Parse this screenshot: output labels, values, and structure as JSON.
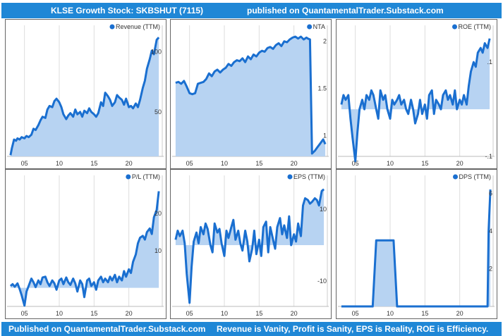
{
  "header": {
    "title": "KLSE Growth Stock: SKBSHUT (7115)",
    "published": "published on QuantamentalTrader.Substack.com"
  },
  "footer": {
    "published": "Published on QuantamentalTrader.Substack.com",
    "tagline": "Revenue is Vanity, Profit is Sanity, EPS is Reality, ROE is Efficiency."
  },
  "colors": {
    "banner": "#1f87d6",
    "line": "#1a6fd0",
    "fill": "#b7d3f2",
    "grid": "#dddddd"
  },
  "chart_data": [
    {
      "id": "revenue",
      "type": "area",
      "legend": "Revenue (TTM)",
      "xticks": [
        5,
        10,
        15,
        20
      ],
      "xtick_labels": [
        "05",
        "10",
        "15",
        "20"
      ],
      "xlim": [
        2.5,
        25
      ],
      "yticks": [
        50,
        100
      ],
      "ytick_labels": [
        "50",
        "100"
      ],
      "ylim": [
        13,
        115
      ],
      "baseline": 13,
      "x": [
        3,
        3.2,
        3.5,
        3.8,
        4,
        4.3,
        4.6,
        5,
        5.3,
        5.6,
        6,
        6.3,
        6.6,
        7,
        7.3,
        7.6,
        8,
        8.3,
        8.6,
        9,
        9.3,
        9.6,
        10,
        10.3,
        10.6,
        11,
        11.3,
        11.6,
        12,
        12.3,
        12.6,
        13,
        13.3,
        13.6,
        14,
        14.3,
        14.6,
        15,
        15.3,
        15.6,
        16,
        16.3,
        16.6,
        17,
        17.3,
        17.6,
        18,
        18.3,
        18.6,
        19,
        19.3,
        19.6,
        20,
        20.3,
        20.6,
        21,
        21.3,
        21.6,
        22,
        22.3,
        22.6,
        23,
        23.3,
        23.6,
        24,
        24.3
      ],
      "values": [
        14,
        20,
        27,
        26,
        28,
        27,
        29,
        28,
        30,
        29,
        31,
        36,
        35,
        39,
        43,
        46,
        45,
        52,
        55,
        54,
        59,
        61,
        58,
        54,
        48,
        44,
        47,
        49,
        46,
        52,
        48,
        50,
        46,
        51,
        49,
        53,
        50,
        48,
        46,
        49,
        58,
        55,
        66,
        63,
        60,
        55,
        58,
        64,
        62,
        60,
        56,
        61,
        54,
        55,
        53,
        57,
        54,
        60,
        70,
        76,
        86,
        94,
        101,
        98,
        110,
        112
      ]
    },
    {
      "id": "nta",
      "type": "area",
      "legend": "NTA",
      "xticks": [
        5,
        10,
        15,
        20
      ],
      "xtick_labels": [
        "05",
        "10",
        "15",
        "20"
      ],
      "xlim": [
        2.5,
        25
      ],
      "yticks": [
        1,
        1.5,
        2
      ],
      "ytick_labels": [
        "1",
        "1.5",
        "2"
      ],
      "ylim": [
        0.78,
        2.08
      ],
      "baseline": 0.78,
      "x": [
        3,
        3.4,
        3.8,
        4.2,
        4.6,
        5,
        5.4,
        5.8,
        6.2,
        6.6,
        7,
        7.4,
        7.8,
        8.2,
        8.6,
        9,
        9.4,
        9.8,
        10.2,
        10.6,
        11,
        11.4,
        11.8,
        12.2,
        12.6,
        13,
        13.4,
        13.8,
        14.2,
        14.6,
        15,
        15.4,
        15.8,
        16.2,
        16.6,
        17,
        17.4,
        17.8,
        18.2,
        18.6,
        19,
        19.4,
        19.8,
        20.2,
        20.6,
        21,
        21.4,
        21.8,
        22,
        22.3,
        22.6,
        23,
        23.4,
        23.8,
        24.2,
        24.5
      ],
      "values": [
        1.56,
        1.57,
        1.55,
        1.58,
        1.52,
        1.45,
        1.44,
        1.45,
        1.55,
        1.56,
        1.57,
        1.6,
        1.66,
        1.63,
        1.68,
        1.7,
        1.67,
        1.7,
        1.72,
        1.76,
        1.74,
        1.78,
        1.8,
        1.79,
        1.82,
        1.78,
        1.84,
        1.81,
        1.86,
        1.84,
        1.88,
        1.9,
        1.89,
        1.93,
        1.94,
        1.92,
        1.96,
        1.98,
        1.95,
        2.0,
        1.99,
        2.02,
        2.04,
        2.05,
        2.03,
        2.05,
        2.02,
        2.04,
        2.03,
        2.02,
        0.81,
        0.84,
        0.88,
        0.92,
        0.96,
        0.91
      ]
    },
    {
      "id": "roe",
      "type": "area",
      "legend": "ROE (TTM)",
      "xticks": [
        5,
        10,
        15,
        20
      ],
      "xtick_labels": [
        "05",
        "10",
        "15",
        "20"
      ],
      "xlim": [
        2.5,
        25
      ],
      "yticks": [
        -0.1,
        0.1
      ],
      "ytick_labels": [
        "-.1",
        ".1"
      ],
      "ylim": [
        -0.1,
        0.16
      ],
      "baseline": 0,
      "x": [
        3,
        3.3,
        3.6,
        4,
        4.3,
        4.6,
        5,
        5.3,
        5.6,
        6,
        6.3,
        6.6,
        7,
        7.3,
        7.6,
        8,
        8.3,
        8.6,
        9,
        9.3,
        9.6,
        10,
        10.3,
        10.6,
        11,
        11.3,
        11.6,
        12,
        12.3,
        12.6,
        13,
        13.3,
        13.6,
        14,
        14.3,
        14.6,
        15,
        15.3,
        15.6,
        16,
        16.3,
        16.6,
        17,
        17.3,
        17.6,
        18,
        18.3,
        18.6,
        19,
        19.3,
        19.6,
        20,
        20.3,
        20.6,
        21,
        21.3,
        21.6,
        22,
        22.3,
        22.6,
        23,
        23.3,
        23.6,
        24,
        24.3
      ],
      "values": [
        0.01,
        0.03,
        0.02,
        0.03,
        -0.02,
        -0.06,
        -0.11,
        -0.05,
        0.0,
        0.02,
        0.0,
        0.03,
        0.02,
        0.04,
        0.03,
        0.0,
        -0.02,
        0.04,
        0.02,
        0.03,
        0.0,
        -0.02,
        0.02,
        0.01,
        0.02,
        0.03,
        0.01,
        0.02,
        0.0,
        -0.01,
        0.02,
        0.0,
        -0.03,
        -0.01,
        0.02,
        -0.01,
        0.01,
        -0.02,
        0.03,
        0.04,
        -0.01,
        0.02,
        0.01,
        0.0,
        0.03,
        0.04,
        0.02,
        0.03,
        0.01,
        0.04,
        0.0,
        0.02,
        0.01,
        0.03,
        0.01,
        0.05,
        0.08,
        0.1,
        0.09,
        0.12,
        0.13,
        0.12,
        0.14,
        0.13,
        0.15
      ]
    },
    {
      "id": "pl",
      "type": "area",
      "legend": "P/L (TTM)",
      "xticks": [
        5,
        10,
        15,
        20
      ],
      "xtick_labels": [
        "05",
        "10",
        "15",
        "20"
      ],
      "xlim": [
        2.5,
        25
      ],
      "yticks": [
        10,
        20
      ],
      "ytick_labels": [
        "10",
        "20"
      ],
      "ylim": [
        -5,
        28
      ],
      "baseline": 0,
      "x": [
        3,
        3.3,
        3.6,
        4,
        4.3,
        4.6,
        5,
        5.3,
        5.6,
        6,
        6.3,
        6.6,
        7,
        7.3,
        7.6,
        8,
        8.3,
        8.6,
        9,
        9.3,
        9.6,
        10,
        10.3,
        10.6,
        11,
        11.3,
        11.6,
        12,
        12.3,
        12.6,
        13,
        13.3,
        13.6,
        14,
        14.3,
        14.6,
        15,
        15.3,
        15.6,
        16,
        16.3,
        16.6,
        17,
        17.3,
        17.6,
        18,
        18.3,
        18.6,
        19,
        19.3,
        19.6,
        20,
        20.3,
        20.6,
        21,
        21.3,
        21.6,
        22,
        22.3,
        22.6,
        23,
        23.3,
        23.6,
        24,
        24.3
      ],
      "values": [
        0.5,
        1.0,
        0.3,
        1.2,
        -0.3,
        -2.0,
        -4.8,
        -1.0,
        0.5,
        2.5,
        1.5,
        0.2,
        2.0,
        1.0,
        2.8,
        3.0,
        1.5,
        0.5,
        2.0,
        1.2,
        -0.5,
        2.0,
        2.5,
        1.0,
        2.8,
        1.5,
        0.8,
        2.5,
        1.2,
        -1.0,
        2.0,
        1.0,
        -2.5,
        2.0,
        2.5,
        0.5,
        1.5,
        -0.5,
        2.0,
        3.0,
        1.5,
        2.5,
        1.5,
        3.0,
        2.0,
        3.5,
        1.5,
        3.0,
        2.0,
        4.5,
        3.0,
        5.0,
        4.0,
        7.0,
        9.0,
        12.0,
        13.5,
        14.0,
        13.0,
        15.0,
        16.0,
        14.5,
        19.0,
        21.0,
        26.0
      ]
    },
    {
      "id": "eps",
      "type": "area",
      "legend": "EPS (TTM)",
      "xticks": [
        5,
        10,
        15,
        20
      ],
      "xtick_labels": [
        "05",
        "10",
        "15",
        "20"
      ],
      "xlim": [
        2.5,
        25
      ],
      "yticks": [
        -10,
        10
      ],
      "ytick_labels": [
        "-10",
        "10"
      ],
      "ylim": [
        -17,
        17
      ],
      "baseline": 0,
      "x": [
        3,
        3.3,
        3.6,
        4,
        4.3,
        4.6,
        5,
        5.3,
        5.6,
        6,
        6.3,
        6.6,
        7,
        7.3,
        7.6,
        8,
        8.3,
        8.6,
        9,
        9.3,
        9.6,
        10,
        10.3,
        10.6,
        11,
        11.3,
        11.6,
        12,
        12.3,
        12.6,
        13,
        13.3,
        13.6,
        14,
        14.3,
        14.6,
        15,
        15.3,
        15.6,
        16,
        16.3,
        16.6,
        17,
        17.3,
        17.6,
        18,
        18.3,
        18.6,
        19,
        19.3,
        19.6,
        20,
        20.3,
        20.6,
        21,
        21.3,
        21.6,
        22,
        22.3,
        22.6,
        23,
        23.3,
        23.6,
        24,
        24.3
      ],
      "values": [
        1.5,
        4.0,
        2.5,
        4.0,
        0.5,
        -8.0,
        -16.0,
        -6.0,
        1.0,
        3.5,
        0.5,
        5.0,
        3.0,
        6.0,
        4.5,
        0.0,
        -2.0,
        6.0,
        3.5,
        4.5,
        0.5,
        -3.0,
        4.0,
        2.0,
        5.0,
        7.0,
        1.5,
        4.0,
        0.5,
        -1.5,
        4.0,
        1.0,
        -4.5,
        -1.0,
        4.0,
        -2.5,
        1.5,
        -3.0,
        5.0,
        6.5,
        -2.0,
        5.0,
        1.5,
        -1.0,
        5.0,
        7.5,
        3.0,
        5.5,
        2.0,
        8.0,
        0.0,
        3.0,
        1.0,
        6.0,
        2.5,
        11.0,
        13.0,
        12.5,
        11.5,
        12.0,
        13.0,
        12.5,
        11.0,
        15.0,
        15.5
      ]
    },
    {
      "id": "dps",
      "type": "area",
      "legend": "DPS (TTM)",
      "xticks": [
        5,
        10,
        15,
        20
      ],
      "xtick_labels": [
        "05",
        "10",
        "15",
        "20"
      ],
      "xlim": [
        2.5,
        25
      ],
      "yticks": [
        2,
        4,
        6
      ],
      "ytick_labels": [
        "2",
        "4",
        "6"
      ],
      "ylim": [
        0,
        6.5
      ],
      "baseline": 0,
      "x": [
        3,
        7.5,
        8,
        10.5,
        11,
        24,
        24.15,
        24.4
      ],
      "values": [
        0,
        0,
        3.5,
        3.5,
        0,
        0,
        4.0,
        6.2
      ]
    }
  ]
}
